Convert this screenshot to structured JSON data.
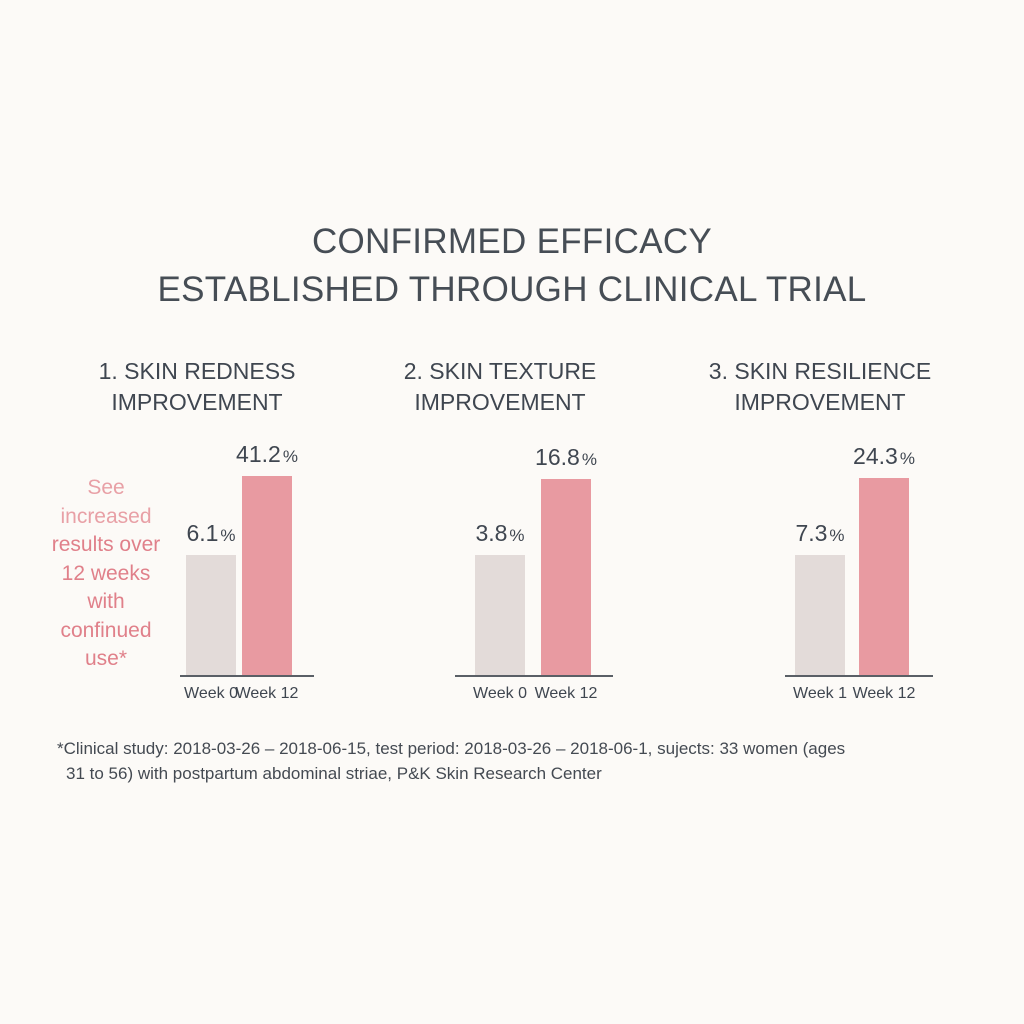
{
  "headline": {
    "line1": "CONFIRMED EFFICACY",
    "line2": "ESTABLISHED THROUGH CLINICAL TRIAL"
  },
  "callout": [
    "See",
    "increased",
    "results over",
    "12 weeks",
    "with",
    "confinued",
    "use*"
  ],
  "footnote": [
    "*Clinical study: 2018-03-26 – 2018-06-15, test period: 2018-03-26 – 2018-06-1, sujects: 33 women (ages",
    "31 to 56) with postpartum abdominal striae, P&K Skin Research Center"
  ],
  "colors": {
    "before": "#e3dbd9",
    "after": "#e89aa1",
    "accent": "#e0808a",
    "text": "#3f4650"
  },
  "chart_data": [
    {
      "type": "bar",
      "title": "1. SKIN REDNESS IMPROVEMENT",
      "title_lines": [
        "1. SKIN REDNESS",
        "IMPROVEMENT"
      ],
      "categories": [
        "Week 0",
        "Week 12"
      ],
      "values": [
        6.1,
        41.2
      ],
      "value_labels": [
        "6.1",
        "41.2"
      ],
      "unit": "%"
    },
    {
      "type": "bar",
      "title": "2. SKIN TEXTURE IMPROVEMENT",
      "title_lines": [
        "2. SKIN TEXTURE",
        "IMPROVEMENT"
      ],
      "categories": [
        "Week 0",
        "Week 12"
      ],
      "values": [
        3.8,
        16.8
      ],
      "value_labels": [
        "3.8",
        "16.8"
      ],
      "unit": "%"
    },
    {
      "type": "bar",
      "title": "3. SKIN RESILIENCE IMPROVEMENT",
      "title_lines": [
        "3. SKIN RESILIENCE",
        "IMPROVEMENT"
      ],
      "categories": [
        "Week 1",
        "Week 12"
      ],
      "values": [
        7.3,
        24.3
      ],
      "value_labels": [
        "7.3",
        "24.3"
      ],
      "unit": "%"
    }
  ]
}
